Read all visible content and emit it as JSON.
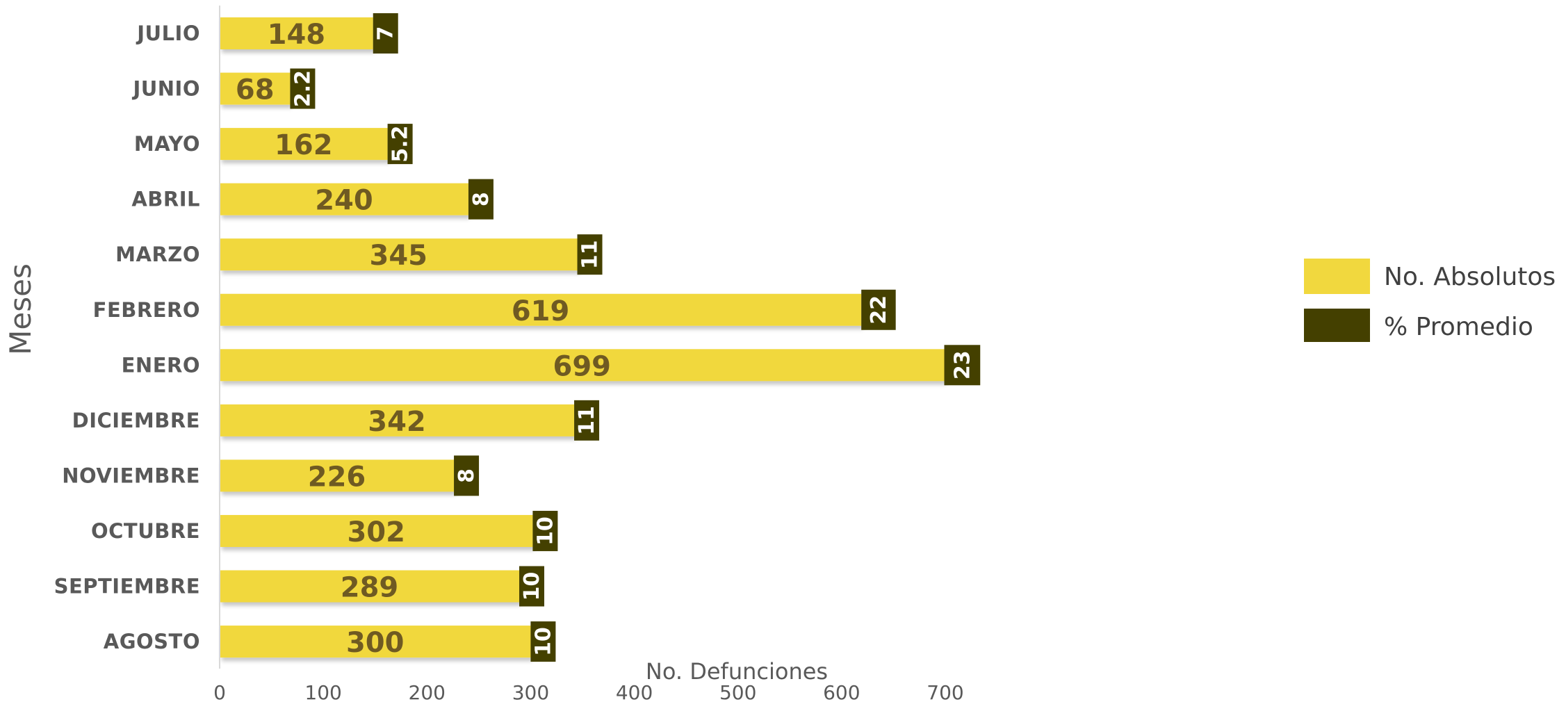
{
  "chart_data": {
    "type": "bar",
    "orientation": "horizontal",
    "stacked": true,
    "categories": [
      "JULIO",
      "JUNIO",
      "MAYO",
      "ABRIL",
      "MARZO",
      "FEBRERO",
      "ENERO",
      "DICIEMBRE",
      "NOVIEMBRE",
      "OCTUBRE",
      "SEPTIEMBRE",
      "AGOSTO"
    ],
    "series": [
      {
        "name": "No. Absolutos",
        "values": [
          148,
          68,
          162,
          240,
          345,
          619,
          699,
          342,
          226,
          302,
          289,
          300
        ],
        "labels": [
          "148",
          "68",
          "162",
          "240",
          "345",
          "619",
          "699",
          "342",
          "226",
          "302",
          "289",
          "300"
        ],
        "color": "#f1d83e"
      },
      {
        "name": "% Promedio",
        "values": [
          7,
          2.2,
          5.2,
          8,
          11,
          22,
          23,
          11,
          8,
          10,
          10,
          10
        ],
        "labels": [
          "7",
          "2.2",
          "5.2",
          "8",
          "11",
          "22",
          "23",
          "11",
          "8",
          "10",
          "10",
          "10"
        ],
        "color": "#444000"
      }
    ],
    "xlabel": "No. Defunciones",
    "ylabel": "Meses",
    "xlim": [
      0,
      700
    ],
    "xticks": [
      0,
      100,
      200,
      300,
      400,
      500,
      600,
      700
    ],
    "grid": false,
    "legend_position": "right"
  }
}
